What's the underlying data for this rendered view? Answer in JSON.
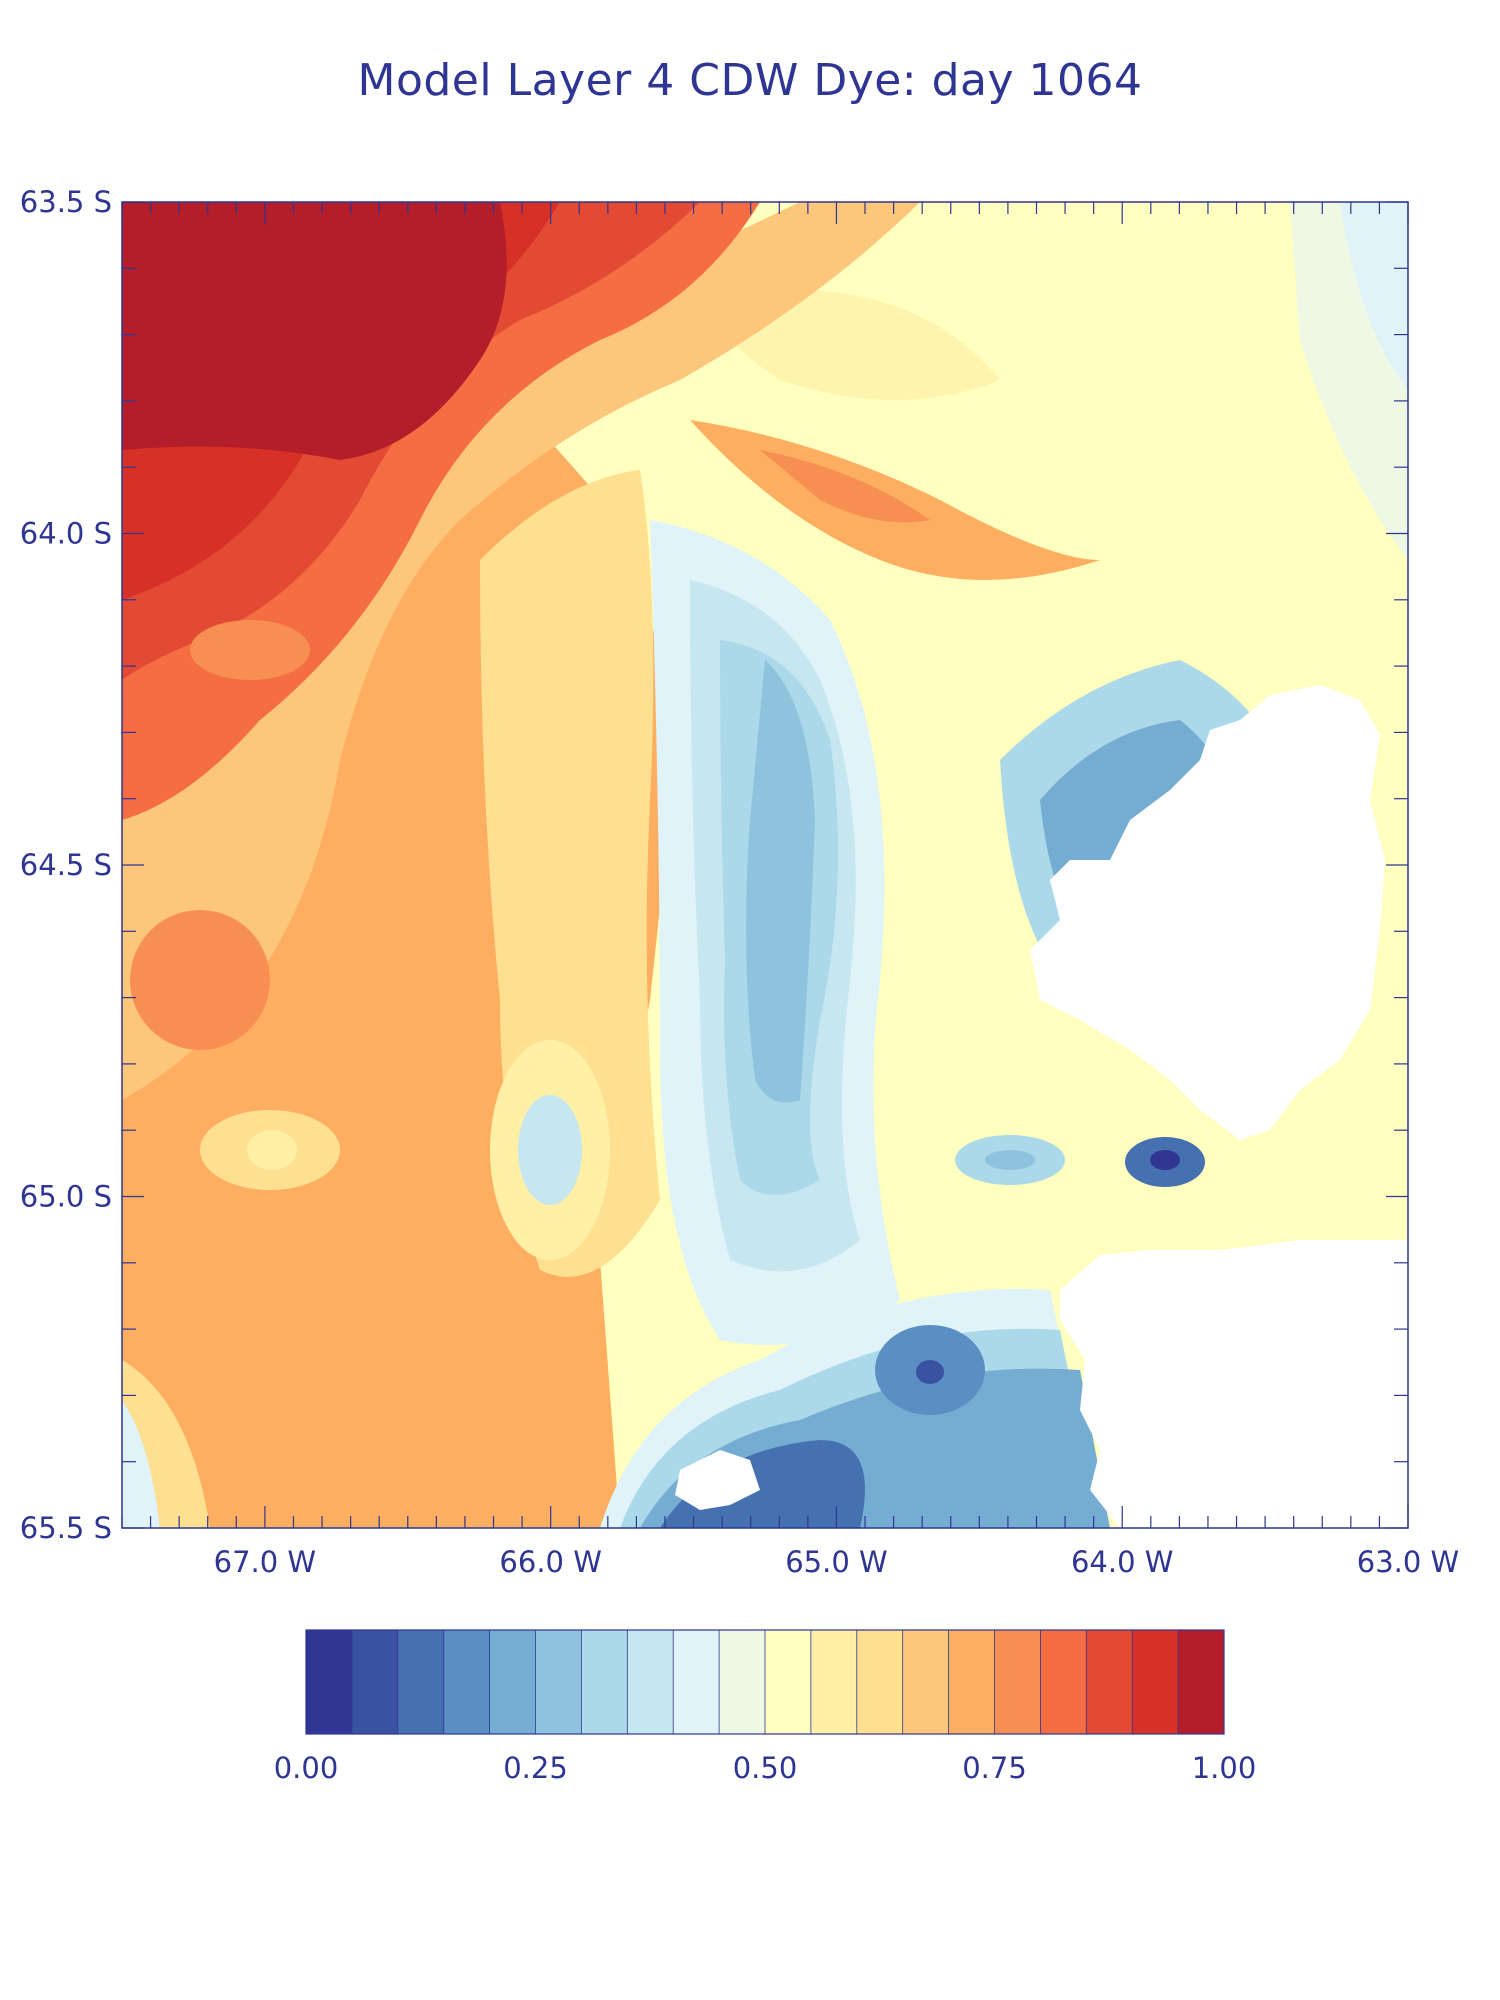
{
  "title": "Model Layer 4 CDW Dye: day 1064",
  "map": {
    "lat_range": [
      -65.5,
      -63.5
    ],
    "lon_range": [
      -67.5,
      -63.0
    ],
    "lat_ticks": [
      "63.5 S",
      "64.0 S",
      "64.5 S",
      "65.0 S",
      "65.5 S"
    ],
    "lon_ticks": [
      "67.0 W",
      "66.0 W",
      "65.0 W",
      "64.0 W",
      "63.0 W"
    ],
    "lat_tick_values": [
      -63.5,
      -64.0,
      -64.5,
      -65.0,
      -65.5
    ],
    "lon_tick_values": [
      -67.0,
      -66.0,
      -65.0,
      -64.0,
      -63.0
    ],
    "land_color": "#ffffff",
    "frame_color": "#2e3592"
  },
  "colorbar": {
    "labels": [
      "0.00",
      "0.25",
      "0.50",
      "0.75",
      "1.00"
    ],
    "range": [
      0.0,
      1.0
    ],
    "levels": 20,
    "colors": [
      "#313695",
      "#3a52a2",
      "#4671b0",
      "#5b8ec3",
      "#74add1",
      "#8fc3dd",
      "#abd9e9",
      "#c6e6f0",
      "#e0f3f8",
      "#eff8e5",
      "#ffffbf",
      "#fff0a6",
      "#fee090",
      "#fdc77b",
      "#fdae61",
      "#f88f52",
      "#f46d43",
      "#e34a33",
      "#d73027",
      "#b41d2a"
    ]
  }
}
